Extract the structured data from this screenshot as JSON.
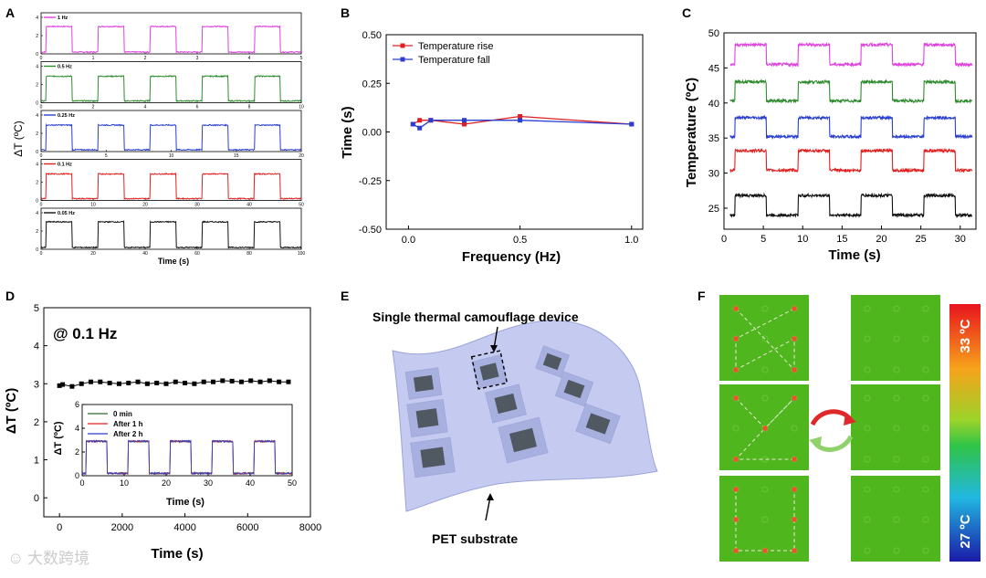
{
  "panels": {
    "A": "A",
    "B": "B",
    "C": "C",
    "D": "D",
    "E": "E",
    "F": "F"
  },
  "watermark": "大数跨境",
  "chart_data": [
    {
      "id": "A",
      "type": "line",
      "xlabel": "Time (s)",
      "ylabel": "ΔT (ºC)",
      "subplots": [
        {
          "label": "1 Hz",
          "color": "#e040e0",
          "xlim": [
            0,
            5
          ],
          "xticks": [
            0,
            1,
            2,
            3,
            4,
            5
          ],
          "yticks": [
            0,
            2,
            4
          ],
          "ylim": [
            0,
            4.5
          ],
          "period": 1,
          "high": 3,
          "low": 0.2
        },
        {
          "label": "0.5 Hz",
          "color": "#2e8b2e",
          "xlim": [
            0,
            10
          ],
          "xticks": [
            0,
            2,
            4,
            6,
            8,
            10
          ],
          "yticks": [
            0,
            2,
            4
          ],
          "ylim": [
            0,
            4.5
          ],
          "period": 2,
          "high": 2.9,
          "low": 0.2
        },
        {
          "label": "0.25 Hz",
          "color": "#2a3fd0",
          "xlim": [
            0,
            20
          ],
          "xticks": [
            0,
            5,
            10,
            15,
            20
          ],
          "yticks": [
            0,
            2,
            4
          ],
          "ylim": [
            0,
            4.5
          ],
          "period": 4,
          "high": 2.9,
          "low": 0.2
        },
        {
          "label": "0.1 Hz",
          "color": "#e02020",
          "xlim": [
            0,
            50
          ],
          "xticks": [
            0,
            10,
            20,
            30,
            40,
            50
          ],
          "yticks": [
            0,
            2,
            4
          ],
          "ylim": [
            0,
            4.5
          ],
          "period": 10,
          "high": 2.9,
          "low": 0.2
        },
        {
          "label": "0.05 Hz",
          "color": "#111111",
          "xlim": [
            0,
            100
          ],
          "xticks": [
            0,
            20,
            40,
            60,
            80,
            100
          ],
          "yticks": [
            0,
            2,
            4
          ],
          "ylim": [
            0,
            4.5
          ],
          "period": 20,
          "high": 3,
          "low": 0.2
        }
      ]
    },
    {
      "id": "B",
      "type": "line",
      "xlabel": "Frequency (Hz)",
      "ylabel": "Time (s)",
      "xlim": [
        -0.1,
        1.05
      ],
      "ylim": [
        -0.5,
        0.5
      ],
      "xticks": [
        0.0,
        0.5,
        1.0
      ],
      "yticks": [
        -0.5,
        -0.25,
        0.0,
        0.25,
        0.5
      ],
      "legend": "top-left",
      "series": [
        {
          "name": "Temperature rise",
          "color": "#e02020",
          "x": [
            0.02,
            0.05,
            0.1,
            0.25,
            0.5,
            1.0
          ],
          "y": [
            0.04,
            0.06,
            0.06,
            0.04,
            0.08,
            0.04
          ]
        },
        {
          "name": "Temperature fall",
          "color": "#2a3fd0",
          "x": [
            0.02,
            0.05,
            0.1,
            0.25,
            0.5,
            1.0
          ],
          "y": [
            0.04,
            0.02,
            0.06,
            0.06,
            0.06,
            0.04
          ]
        }
      ]
    },
    {
      "id": "C",
      "type": "line",
      "xlabel": "Time (s)",
      "ylabel": "Temperature (ºC)",
      "xlim": [
        0,
        32
      ],
      "ylim": [
        22,
        50
      ],
      "xticks": [
        0,
        5,
        10,
        15,
        20,
        25,
        30
      ],
      "yticks": [
        25,
        30,
        35,
        40,
        45,
        50
      ],
      "period": 8,
      "series": [
        {
          "color": "#e040e0",
          "low": 45.5,
          "high": 48.3
        },
        {
          "color": "#2e8b2e",
          "low": 40.3,
          "high": 43.0
        },
        {
          "color": "#2a3fd0",
          "low": 35.2,
          "high": 37.9
        },
        {
          "color": "#e02020",
          "low": 30.4,
          "high": 33.2
        },
        {
          "color": "#111111",
          "low": 24.0,
          "high": 26.8
        }
      ]
    },
    {
      "id": "D",
      "type": "scatter",
      "annotation": "@ 0.1 Hz",
      "xlabel": "Time (s)",
      "ylabel": "ΔT (ºC)",
      "xlim": [
        -500,
        8000
      ],
      "ylim": [
        -0.5,
        5
      ],
      "xticks": [
        0,
        2000,
        4000,
        6000,
        8000
      ],
      "yticks": [
        0,
        1,
        2,
        3,
        4,
        5
      ],
      "x": [
        0,
        100,
        400,
        700,
        1000,
        1300,
        1600,
        1900,
        2200,
        2500,
        2800,
        3100,
        3400,
        3700,
        4000,
        4300,
        4600,
        4900,
        5200,
        5500,
        5800,
        6100,
        6400,
        6700,
        7000,
        7300
      ],
      "y": [
        2.95,
        2.98,
        2.93,
        3.0,
        3.05,
        3.05,
        3.02,
        3.0,
        3.02,
        3.05,
        3.0,
        3.02,
        3.0,
        3.05,
        3.02,
        3.0,
        3.05,
        3.05,
        3.08,
        3.07,
        3.05,
        3.08,
        3.05,
        3.08,
        3.05,
        3.05
      ],
      "inset": {
        "xlabel": "Time (s)",
        "ylabel": "ΔT (ºC)",
        "xlim": [
          0,
          50
        ],
        "ylim": [
          0,
          6
        ],
        "xticks": [
          0,
          10,
          20,
          30,
          40,
          50
        ],
        "yticks": [
          0,
          2,
          4,
          6
        ],
        "period": 10,
        "high": 2.9,
        "low": 0.2,
        "legend": "top-left",
        "series": [
          {
            "name": "0 min",
            "color": "#2e6b2e"
          },
          {
            "name": "After 1 h",
            "color": "#e02020"
          },
          {
            "name": "After 2 h",
            "color": "#2a3fd0"
          }
        ]
      }
    }
  ],
  "panelE": {
    "device_label": "Single thermal camouflage device",
    "substrate_label": "PET substrate"
  },
  "panelF": {
    "scale_top": "33 ºC",
    "scale_bottom": "27 ºC",
    "bg_color": "#4fb61e"
  }
}
